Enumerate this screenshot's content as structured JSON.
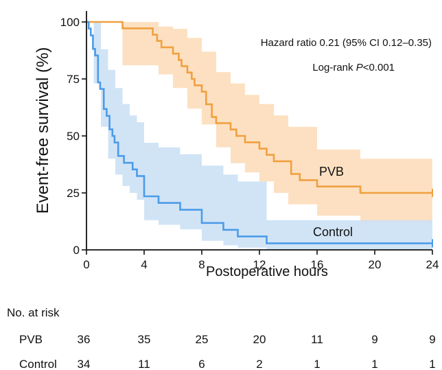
{
  "chart_data": {
    "type": "line",
    "title": "",
    "xlabel": "Postoperative hours",
    "ylabel": "Event-free survival (%)",
    "xlim": [
      0,
      24
    ],
    "ylim": [
      0,
      100
    ],
    "xticks": [
      0,
      4,
      8,
      12,
      16,
      20,
      24
    ],
    "yticks": [
      0,
      25,
      50,
      75,
      100
    ],
    "grid": false,
    "annotations": {
      "hazard_ratio": "Hazard ratio 0.21 (95% CI  0.12–0.35)",
      "logrank_prefix": "Log-rank ",
      "logrank_p": "P",
      "logrank_value": "<0.001"
    },
    "series": [
      {
        "name": "PVB",
        "color": "#f0a040",
        "ci_color": "#fddbb6",
        "steps": [
          [
            0,
            100
          ],
          [
            2.5,
            97.2
          ],
          [
            4.6,
            94.4
          ],
          [
            4.9,
            91.7
          ],
          [
            5.2,
            88.9
          ],
          [
            6.0,
            86.1
          ],
          [
            6.4,
            83.3
          ],
          [
            6.6,
            80.6
          ],
          [
            7.0,
            77.8
          ],
          [
            7.3,
            75.0
          ],
          [
            7.5,
            72.2
          ],
          [
            8.0,
            69.4
          ],
          [
            8.3,
            63.9
          ],
          [
            8.7,
            58.3
          ],
          [
            9.0,
            55.6
          ],
          [
            10.0,
            52.8
          ],
          [
            10.4,
            50.0
          ],
          [
            11.0,
            47.2
          ],
          [
            12.0,
            44.4
          ],
          [
            12.5,
            41.7
          ],
          [
            13.0,
            38.9
          ],
          [
            14.2,
            33.3
          ],
          [
            14.8,
            30.6
          ],
          [
            16.0,
            27.8
          ],
          [
            19.0,
            25.0
          ],
          [
            24,
            25.0
          ]
        ],
        "ci_upper": [
          [
            0,
            100
          ],
          [
            2.5,
            100
          ],
          [
            4.0,
            100
          ],
          [
            5.0,
            98
          ],
          [
            6.0,
            97
          ],
          [
            7.0,
            93
          ],
          [
            8.0,
            87
          ],
          [
            9.0,
            78
          ],
          [
            10.0,
            73
          ],
          [
            11.0,
            68
          ],
          [
            12.0,
            64
          ],
          [
            13.0,
            59
          ],
          [
            14.0,
            54
          ],
          [
            16.0,
            44
          ],
          [
            19.0,
            40
          ],
          [
            24,
            40
          ]
        ],
        "ci_lower": [
          [
            0,
            100
          ],
          [
            2.5,
            81
          ],
          [
            4.0,
            81
          ],
          [
            5.0,
            77
          ],
          [
            6.0,
            71
          ],
          [
            7.0,
            62
          ],
          [
            8.0,
            55
          ],
          [
            9.0,
            45
          ],
          [
            10.0,
            38
          ],
          [
            11.0,
            34
          ],
          [
            12.0,
            30
          ],
          [
            13.0,
            25
          ],
          [
            14.0,
            20
          ],
          [
            16.0,
            15
          ],
          [
            19.0,
            12
          ],
          [
            24,
            12
          ]
        ],
        "censor_at": [
          24
        ],
        "at_risk": [
          36,
          35,
          25,
          20,
          11,
          9,
          9
        ]
      },
      {
        "name": "Control",
        "color": "#4c9be8",
        "ci_color": "#c9dff5",
        "steps": [
          [
            0,
            100
          ],
          [
            0.15,
            97.1
          ],
          [
            0.3,
            94.1
          ],
          [
            0.45,
            88.2
          ],
          [
            0.6,
            85.3
          ],
          [
            0.8,
            73.5
          ],
          [
            0.95,
            70.6
          ],
          [
            1.2,
            61.8
          ],
          [
            1.4,
            58.8
          ],
          [
            1.6,
            52.9
          ],
          [
            1.8,
            50.0
          ],
          [
            1.95,
            47.1
          ],
          [
            2.2,
            41.2
          ],
          [
            2.6,
            38.2
          ],
          [
            3.2,
            35.3
          ],
          [
            3.5,
            32.4
          ],
          [
            4.0,
            23.5
          ],
          [
            5.0,
            20.6
          ],
          [
            6.5,
            17.6
          ],
          [
            8.0,
            11.8
          ],
          [
            9.5,
            8.8
          ],
          [
            10.5,
            5.9
          ],
          [
            12.5,
            2.9
          ],
          [
            24,
            2.9
          ]
        ],
        "ci_upper": [
          [
            0,
            100
          ],
          [
            0.5,
            100
          ],
          [
            1.0,
            88
          ],
          [
            1.5,
            79
          ],
          [
            2.0,
            71
          ],
          [
            2.5,
            64
          ],
          [
            3.0,
            59
          ],
          [
            3.5,
            56
          ],
          [
            4.0,
            47
          ],
          [
            5.0,
            45
          ],
          [
            6.5,
            42
          ],
          [
            8.0,
            37
          ],
          [
            9.5,
            33
          ],
          [
            10.5,
            30
          ],
          [
            12.5,
            13
          ],
          [
            24,
            13
          ]
        ],
        "ci_lower": [
          [
            0,
            100
          ],
          [
            0.5,
            73
          ],
          [
            1.0,
            54
          ],
          [
            1.5,
            40
          ],
          [
            2.0,
            33
          ],
          [
            2.5,
            28
          ],
          [
            3.0,
            25
          ],
          [
            3.5,
            22
          ],
          [
            4.0,
            13
          ],
          [
            5.0,
            11
          ],
          [
            6.5,
            9
          ],
          [
            8.0,
            4
          ],
          [
            9.5,
            2
          ],
          [
            10.5,
            1
          ],
          [
            12.5,
            0
          ],
          [
            24,
            0
          ]
        ],
        "censor_at": [
          24
        ],
        "at_risk": [
          34,
          11,
          6,
          2,
          1,
          1,
          1
        ]
      }
    ]
  },
  "risk_table": {
    "title": "No. at risk",
    "rows": [
      {
        "label": "PVB",
        "values": [
          "36",
          "35",
          "25",
          "20",
          "11",
          "9",
          "9"
        ]
      },
      {
        "label": "Control",
        "values": [
          "34",
          "11",
          "6",
          "2",
          "1",
          "1",
          "1"
        ]
      }
    ]
  }
}
